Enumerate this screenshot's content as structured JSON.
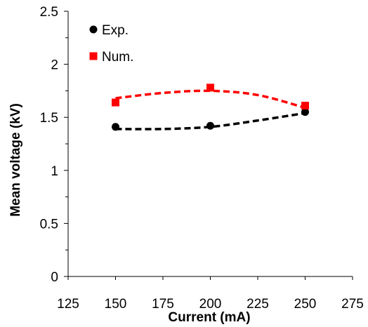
{
  "chart_data": {
    "type": "scatter",
    "xlabel": "Current (mA)",
    "ylabel": "Mean voltage (kV)",
    "xlim": [
      125,
      275
    ],
    "ylim": [
      0,
      2.5
    ],
    "xticks": [
      125,
      150,
      175,
      200,
      225,
      250,
      275
    ],
    "yticks": [
      0,
      0.5,
      1,
      1.5,
      2,
      2.5
    ],
    "xtick_labels": [
      "125",
      "150",
      "175",
      "200",
      "225",
      "250",
      "275"
    ],
    "ytick_labels": [
      "0",
      "0.5",
      "1",
      "1.5",
      "2",
      "2.5"
    ],
    "legend_position": "top-left",
    "grid": false,
    "series": [
      {
        "name": "Exp.",
        "marker": "circle",
        "color": "#000000",
        "x": [
          150,
          200,
          250
        ],
        "y": [
          1.41,
          1.42,
          1.55
        ],
        "trend": {
          "style": "dashed",
          "x": [
            150,
            175,
            200,
            225,
            250
          ],
          "y": [
            1.39,
            1.39,
            1.41,
            1.47,
            1.54
          ]
        }
      },
      {
        "name": "Num.",
        "marker": "square",
        "color": "#ff0000",
        "x": [
          150,
          200,
          250
        ],
        "y": [
          1.64,
          1.78,
          1.61
        ],
        "trend": {
          "style": "dashed",
          "x": [
            150,
            175,
            200,
            225,
            250
          ],
          "y": [
            1.68,
            1.73,
            1.75,
            1.71,
            1.59
          ]
        }
      }
    ]
  }
}
